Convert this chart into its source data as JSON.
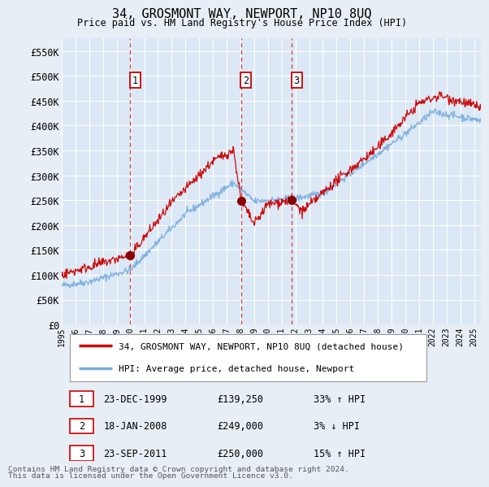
{
  "title": "34, GROSMONT WAY, NEWPORT, NP10 8UQ",
  "subtitle": "Price paid vs. HM Land Registry's House Price Index (HPI)",
  "legend_property": "34, GROSMONT WAY, NEWPORT, NP10 8UQ (detached house)",
  "legend_hpi": "HPI: Average price, detached house, Newport",
  "ylabel_ticks": [
    "£0",
    "£50K",
    "£100K",
    "£150K",
    "£200K",
    "£250K",
    "£300K",
    "£350K",
    "£400K",
    "£450K",
    "£500K",
    "£550K"
  ],
  "ytick_values": [
    0,
    50000,
    100000,
    150000,
    200000,
    250000,
    300000,
    350000,
    400000,
    450000,
    500000,
    550000
  ],
  "ylim": [
    0,
    575000
  ],
  "xlim_start": 1995.0,
  "xlim_end": 2025.5,
  "sales": [
    {
      "num": 1,
      "year": 1999.97,
      "price": 139250,
      "date": "23-DEC-1999",
      "price_str": "£139,250",
      "pct": "33%",
      "dir": "↑"
    },
    {
      "num": 2,
      "year": 2008.05,
      "price": 249000,
      "date": "18-JAN-2008",
      "price_str": "£249,000",
      "pct": "3%",
      "dir": "↓"
    },
    {
      "num": 3,
      "year": 2011.73,
      "price": 250000,
      "date": "23-SEP-2011",
      "price_str": "£250,000",
      "pct": "15%",
      "dir": "↑"
    }
  ],
  "background_color": "#e8eef5",
  "plot_bg_color": "#dce8f5",
  "grid_color": "#ffffff",
  "line_color_property": "#cc0000",
  "line_color_hpi": "#7aadde",
  "footnote_line1": "Contains HM Land Registry data © Crown copyright and database right 2024.",
  "footnote_line2": "This data is licensed under the Open Government Licence v3.0."
}
